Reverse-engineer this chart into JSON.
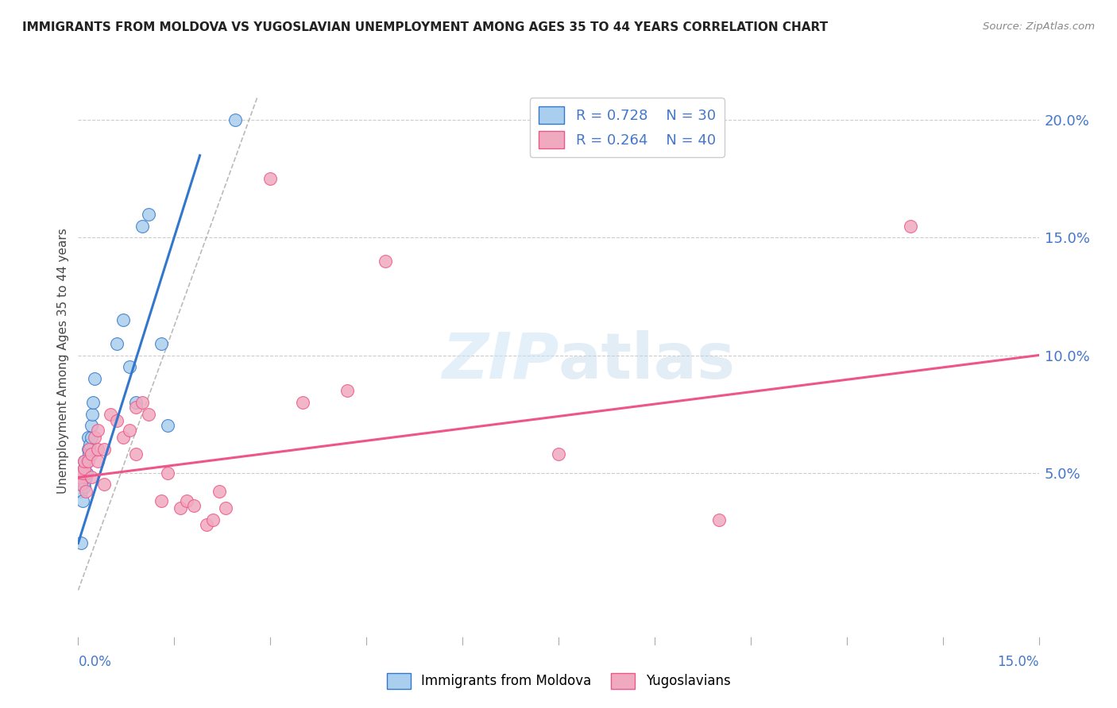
{
  "title": "IMMIGRANTS FROM MOLDOVA VS YUGOSLAVIAN UNEMPLOYMENT AMONG AGES 35 TO 44 YEARS CORRELATION CHART",
  "source": "Source: ZipAtlas.com",
  "ylabel": "Unemployment Among Ages 35 to 44 years",
  "xlim": [
    0.0,
    0.15
  ],
  "ylim": [
    -0.02,
    0.215
  ],
  "yticks": [
    0.05,
    0.1,
    0.15,
    0.2
  ],
  "ytick_labels": [
    "5.0%",
    "10.0%",
    "15.0%",
    "20.0%"
  ],
  "color_moldova": "#aacfee",
  "color_yugoslav": "#f0aac0",
  "color_moldova_line": "#3377cc",
  "color_yugoslav_line": "#ee5588",
  "color_text_blue": "#4477cc",
  "background_color": "#ffffff",
  "moldova_x": [
    0.0003,
    0.0005,
    0.0007,
    0.0008,
    0.0009,
    0.001,
    0.001,
    0.001,
    0.0012,
    0.0013,
    0.0014,
    0.0015,
    0.0015,
    0.0017,
    0.0018,
    0.002,
    0.002,
    0.0022,
    0.0023,
    0.0025,
    0.006,
    0.007,
    0.008,
    0.009,
    0.01,
    0.011,
    0.013,
    0.014,
    0.0245,
    0.0005
  ],
  "moldova_y": [
    0.048,
    0.042,
    0.038,
    0.05,
    0.044,
    0.046,
    0.052,
    0.055,
    0.048,
    0.05,
    0.055,
    0.06,
    0.065,
    0.058,
    0.062,
    0.065,
    0.07,
    0.075,
    0.08,
    0.09,
    0.105,
    0.115,
    0.095,
    0.08,
    0.155,
    0.16,
    0.105,
    0.07,
    0.2,
    0.02
  ],
  "yugoslav_x": [
    0.0003,
    0.0005,
    0.0007,
    0.001,
    0.001,
    0.0012,
    0.0015,
    0.0017,
    0.002,
    0.002,
    0.0025,
    0.003,
    0.003,
    0.003,
    0.004,
    0.004,
    0.005,
    0.006,
    0.007,
    0.008,
    0.009,
    0.009,
    0.01,
    0.011,
    0.013,
    0.014,
    0.016,
    0.017,
    0.018,
    0.02,
    0.021,
    0.022,
    0.023,
    0.03,
    0.035,
    0.042,
    0.048,
    0.075,
    0.1,
    0.13
  ],
  "yugoslav_y": [
    0.048,
    0.045,
    0.05,
    0.052,
    0.055,
    0.042,
    0.055,
    0.06,
    0.048,
    0.058,
    0.065,
    0.055,
    0.06,
    0.068,
    0.045,
    0.06,
    0.075,
    0.072,
    0.065,
    0.068,
    0.058,
    0.078,
    0.08,
    0.075,
    0.038,
    0.05,
    0.035,
    0.038,
    0.036,
    0.028,
    0.03,
    0.042,
    0.035,
    0.175,
    0.08,
    0.085,
    0.14,
    0.058,
    0.03,
    0.155
  ],
  "moldova_line_x": [
    0.0,
    0.019
  ],
  "moldova_line_y": [
    0.02,
    0.185
  ],
  "yugoslav_line_x": [
    0.0,
    0.15
  ],
  "yugoslav_line_y": [
    0.048,
    0.1
  ],
  "dash_line_x": [
    0.0,
    0.028
  ],
  "dash_line_y": [
    0.0,
    0.21
  ]
}
